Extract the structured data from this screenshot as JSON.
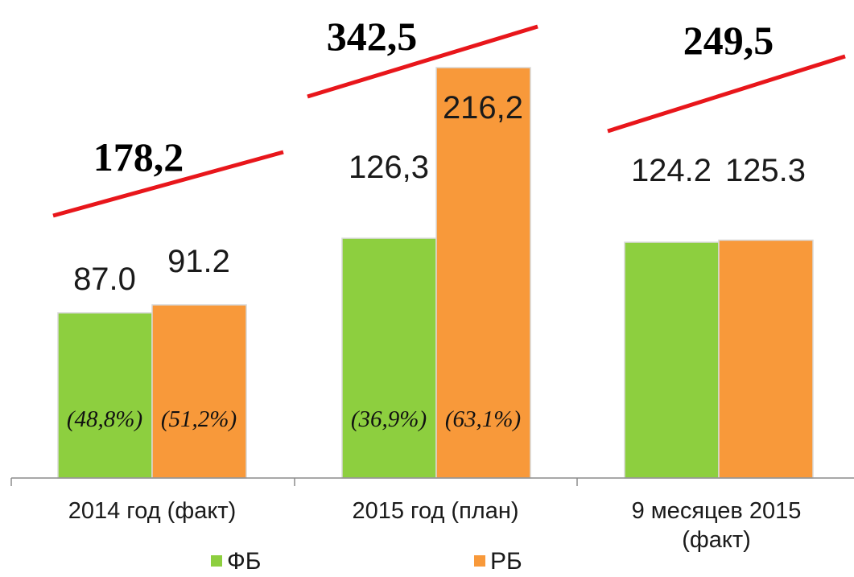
{
  "chart_data": {
    "type": "bar",
    "categories": [
      "2014 год (факт)",
      "2015 год (план)",
      "9 месяцев 2015 (факт)"
    ],
    "series": [
      {
        "name": "ФБ",
        "color": "#8dcf3f",
        "values": [
          87.0,
          126.3,
          124.2
        ],
        "value_labels": [
          "87.0",
          "126,3",
          "124.2"
        ],
        "share_labels": [
          "(48,8%)",
          "(36,9%)",
          ""
        ]
      },
      {
        "name": "РБ",
        "color": "#f8993a",
        "values": [
          91.2,
          216.2,
          125.3
        ],
        "value_labels": [
          "91.2",
          "216,2",
          "125.3"
        ],
        "share_labels": [
          "(51,2%)",
          "(63,1%)",
          ""
        ]
      }
    ],
    "totals": {
      "values": [
        178.2,
        342.5,
        249.5
      ],
      "labels": [
        "178,2",
        "342,5",
        "249,5"
      ],
      "line_color": "#e8161b"
    },
    "legend": {
      "position": "bottom"
    },
    "grid": false,
    "ylim": [
      0,
      230
    ]
  }
}
